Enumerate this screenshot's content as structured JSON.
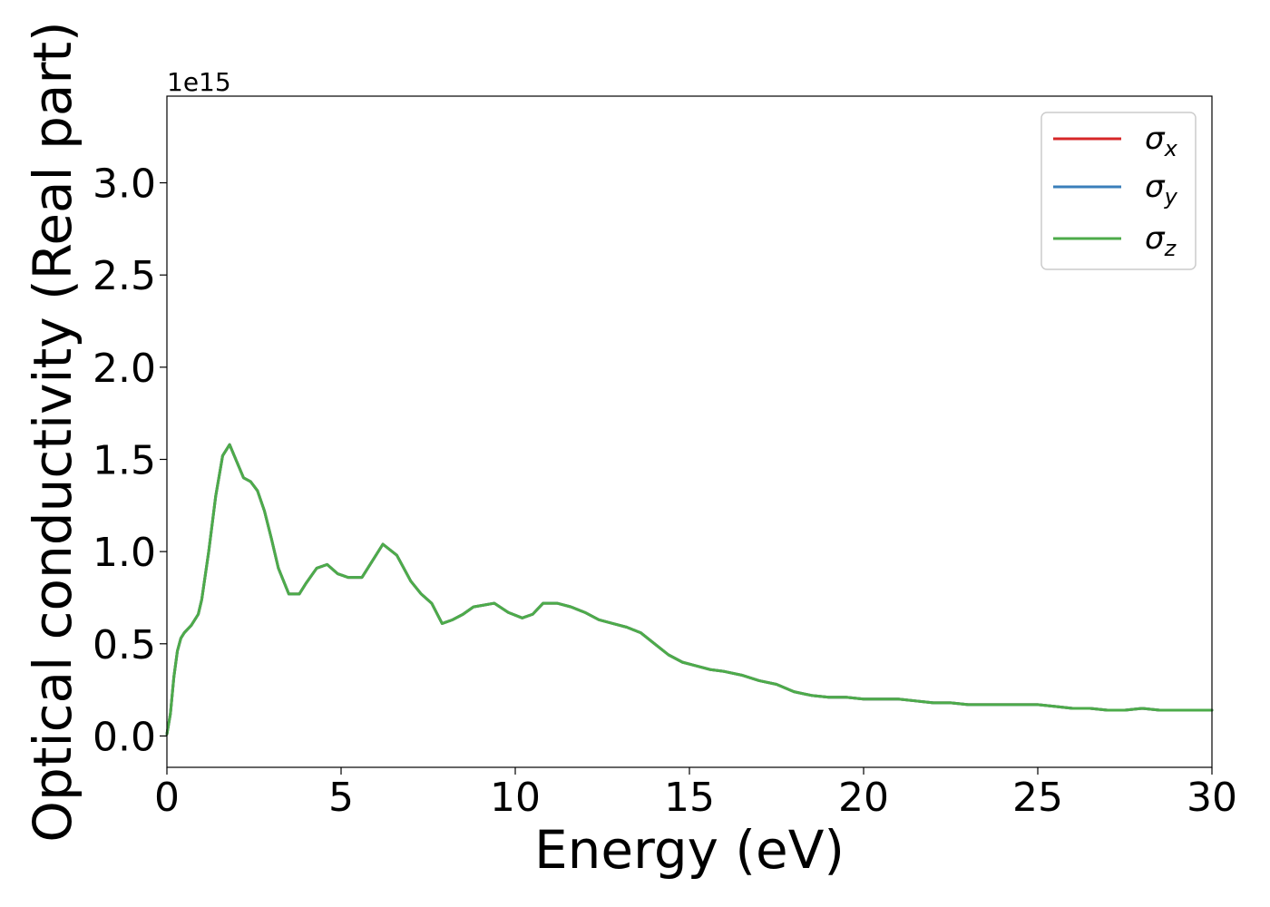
{
  "chart_data": {
    "type": "line",
    "xlabel": "Energy (eV)",
    "ylabel": "Optical conductivity (Real part)",
    "y_offset_label": "1e15",
    "xlim": [
      0,
      30
    ],
    "ylim": [
      -0.17,
      3.47
    ],
    "x_ticks": [
      0,
      5,
      10,
      15,
      20,
      25,
      30
    ],
    "x_tick_labels": [
      "0",
      "5",
      "10",
      "15",
      "20",
      "25",
      "30"
    ],
    "y_ticks": [
      0.0,
      0.5,
      1.0,
      1.5,
      2.0,
      2.5,
      3.0
    ],
    "y_tick_labels": [
      "0.0",
      "0.5",
      "1.0",
      "1.5",
      "2.0",
      "2.5",
      "3.0"
    ],
    "grid": false,
    "legend_position": "top-right",
    "legend": [
      {
        "symbol": "σ",
        "subscript": "x",
        "color": "#d62728"
      },
      {
        "symbol": "σ",
        "subscript": "y",
        "color": "#3a7fba"
      },
      {
        "symbol": "σ",
        "subscript": "z",
        "color": "#4dab4a"
      }
    ],
    "x": [
      0,
      0.1,
      0.2,
      0.3,
      0.4,
      0.5,
      0.7,
      0.9,
      1.0,
      1.2,
      1.4,
      1.6,
      1.8,
      2.0,
      2.2,
      2.4,
      2.6,
      2.8,
      3.0,
      3.2,
      3.5,
      3.8,
      4.0,
      4.3,
      4.6,
      4.9,
      5.2,
      5.6,
      5.9,
      6.2,
      6.6,
      7.0,
      7.3,
      7.6,
      7.9,
      8.2,
      8.5,
      8.8,
      9.1,
      9.4,
      9.8,
      10.2,
      10.5,
      10.8,
      11.2,
      11.6,
      12.0,
      12.4,
      12.8,
      13.2,
      13.6,
      14.0,
      14.4,
      14.8,
      15.2,
      15.6,
      16.0,
      16.5,
      17.0,
      17.5,
      18.0,
      18.5,
      19.0,
      19.5,
      20.0,
      20.5,
      21.0,
      21.5,
      22.0,
      22.5,
      23.0,
      23.5,
      24.0,
      24.5,
      25.0,
      25.5,
      26.0,
      26.5,
      27.0,
      27.5,
      28.0,
      28.5,
      29.0,
      29.5,
      30.0
    ],
    "series": [
      {
        "color": "#d62728",
        "values": [
          0.01,
          0.12,
          0.32,
          0.46,
          0.53,
          0.56,
          0.6,
          0.66,
          0.74,
          1.0,
          1.3,
          1.52,
          1.58,
          1.49,
          1.4,
          1.38,
          1.33,
          1.22,
          1.07,
          0.91,
          0.77,
          0.77,
          0.83,
          0.91,
          0.93,
          0.88,
          0.86,
          0.86,
          0.95,
          1.04,
          0.98,
          0.84,
          0.77,
          0.72,
          0.61,
          0.63,
          0.66,
          0.7,
          0.71,
          0.72,
          0.67,
          0.64,
          0.66,
          0.72,
          0.72,
          0.7,
          0.67,
          0.63,
          0.61,
          0.59,
          0.56,
          0.5,
          0.44,
          0.4,
          0.38,
          0.36,
          0.35,
          0.33,
          0.3,
          0.28,
          0.24,
          0.22,
          0.21,
          0.21,
          0.2,
          0.2,
          0.2,
          0.19,
          0.18,
          0.18,
          0.17,
          0.17,
          0.17,
          0.17,
          0.17,
          0.16,
          0.15,
          0.15,
          0.14,
          0.14,
          0.15,
          0.14,
          0.14,
          0.14,
          0.14
        ]
      },
      {
        "color": "#3a7fba",
        "values": [
          0.01,
          0.12,
          0.32,
          0.46,
          0.53,
          0.56,
          0.6,
          0.66,
          0.74,
          1.0,
          1.3,
          1.52,
          1.58,
          1.49,
          1.4,
          1.38,
          1.33,
          1.22,
          1.07,
          0.91,
          0.77,
          0.77,
          0.83,
          0.91,
          0.93,
          0.88,
          0.86,
          0.86,
          0.95,
          1.04,
          0.98,
          0.84,
          0.77,
          0.72,
          0.61,
          0.63,
          0.66,
          0.7,
          0.71,
          0.72,
          0.67,
          0.64,
          0.66,
          0.72,
          0.72,
          0.7,
          0.67,
          0.63,
          0.61,
          0.59,
          0.56,
          0.5,
          0.44,
          0.4,
          0.38,
          0.36,
          0.35,
          0.33,
          0.3,
          0.28,
          0.24,
          0.22,
          0.21,
          0.21,
          0.2,
          0.2,
          0.2,
          0.19,
          0.18,
          0.18,
          0.17,
          0.17,
          0.17,
          0.17,
          0.17,
          0.16,
          0.15,
          0.15,
          0.14,
          0.14,
          0.15,
          0.14,
          0.14,
          0.14,
          0.14
        ]
      },
      {
        "color": "#4dab4a",
        "values": [
          0.01,
          0.12,
          0.32,
          0.46,
          0.53,
          0.56,
          0.6,
          0.66,
          0.74,
          1.0,
          1.3,
          1.52,
          1.58,
          1.49,
          1.4,
          1.38,
          1.33,
          1.22,
          1.07,
          0.91,
          0.77,
          0.77,
          0.83,
          0.91,
          0.93,
          0.88,
          0.86,
          0.86,
          0.95,
          1.04,
          0.98,
          0.84,
          0.77,
          0.72,
          0.61,
          0.63,
          0.66,
          0.7,
          0.71,
          0.72,
          0.67,
          0.64,
          0.66,
          0.72,
          0.72,
          0.7,
          0.67,
          0.63,
          0.61,
          0.59,
          0.56,
          0.5,
          0.44,
          0.4,
          0.38,
          0.36,
          0.35,
          0.33,
          0.3,
          0.28,
          0.24,
          0.22,
          0.21,
          0.21,
          0.2,
          0.2,
          0.2,
          0.19,
          0.18,
          0.18,
          0.17,
          0.17,
          0.17,
          0.17,
          0.17,
          0.16,
          0.15,
          0.15,
          0.14,
          0.14,
          0.15,
          0.14,
          0.14,
          0.14,
          0.14
        ]
      }
    ]
  }
}
